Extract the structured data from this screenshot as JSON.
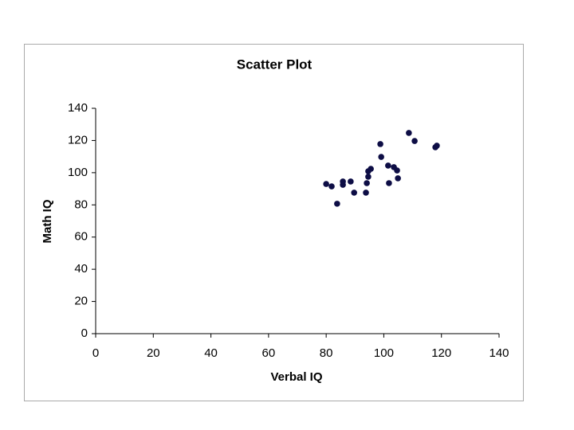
{
  "chart_data": {
    "type": "scatter",
    "title": "Scatter Plot",
    "x_label": "Verbal IQ",
    "y_label": "Math IQ",
    "color": "#0d0d45",
    "x": [
      80.0,
      81.9,
      83.8,
      85.8,
      85.8,
      88.5,
      89.7,
      93.8,
      94.1,
      94.6,
      94.6,
      95.5,
      98.8,
      99.1,
      101.5,
      101.8,
      103.5,
      104.6,
      104.9,
      108.7,
      110.7,
      117.9,
      118.4
    ],
    "values": [
      93.0,
      91.5,
      80.7,
      94.5,
      92.5,
      94.5,
      87.6,
      87.6,
      93.5,
      97.5,
      100.9,
      102.4,
      117.8,
      109.8,
      104.4,
      93.5,
      103.4,
      101.4,
      96.5,
      124.7,
      119.7,
      115.8,
      116.8
    ],
    "xlim": [
      0,
      140
    ],
    "ylim": [
      0,
      140
    ],
    "xticks": [
      0,
      20,
      40,
      60,
      80,
      100,
      120,
      140
    ],
    "yticks": [
      0,
      20,
      40,
      60,
      80,
      100,
      120,
      140
    ]
  }
}
